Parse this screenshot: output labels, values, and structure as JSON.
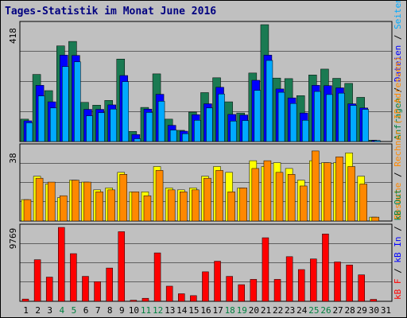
{
  "title": "Tages-Statistik im Monat June 2016",
  "colors": {
    "hits": "#1a7a52",
    "files": "#0000ff",
    "pages": "#00aaff",
    "visits": "#ffff00",
    "sites": "#ff8800",
    "kbytes": "#ff0000",
    "weekend": "#008040",
    "weekday": "#000000"
  },
  "chart_data": [
    {
      "type": "bar",
      "panel": "top",
      "ymax_label": "418",
      "right_labels": [
        {
          "text": "Anfragen",
          "color": "#008040"
        },
        {
          "text": " / ",
          "color": "#000000"
        },
        {
          "text": "Dateien",
          "color": "#0000ff"
        },
        {
          "text": " / ",
          "color": "#000000"
        },
        {
          "text": "Seiten",
          "color": "#00aaff"
        }
      ],
      "ylim": [
        0,
        418
      ],
      "categories": [
        "1",
        "2",
        "3",
        "4",
        "5",
        "6",
        "7",
        "8",
        "9",
        "10",
        "11",
        "12",
        "13",
        "14",
        "15",
        "16",
        "17",
        "18",
        "19",
        "20",
        "21",
        "22",
        "23",
        "24",
        "25",
        "26",
        "27",
        "28",
        "29",
        "30",
        "31"
      ],
      "series": [
        {
          "name": "Anfragen",
          "values": [
            80,
            240,
            182,
            342,
            358,
            140,
            130,
            147,
            295,
            36,
            122,
            242,
            80,
            40,
            105,
            175,
            228,
            142,
            102,
            245,
            418,
            227,
            225,
            164,
            238,
            259,
            226,
            208,
            158,
            5,
            0
          ]
        },
        {
          "name": "Dateien",
          "values": [
            74,
            201,
            142,
            309,
            308,
            115,
            115,
            131,
            236,
            25,
            116,
            169,
            58,
            37,
            96,
            135,
            194,
            97,
            95,
            219,
            309,
            188,
            156,
            102,
            201,
            200,
            192,
            135,
            120,
            4,
            0
          ]
        },
        {
          "name": "Seiten",
          "values": [
            67,
            163,
            120,
            268,
            285,
            92,
            103,
            116,
            214,
            10,
            104,
            144,
            41,
            28,
            76,
            120,
            170,
            73,
            75,
            183,
            290,
            176,
            136,
            76,
            179,
            168,
            173,
            129,
            115,
            3,
            0
          ]
        }
      ]
    },
    {
      "type": "bar",
      "panel": "middle",
      "ymax_label": "38",
      "right_labels": [
        {
          "text": "Besuche",
          "color": "#ff8800"
        },
        {
          "text": " / ",
          "color": "#000000"
        },
        {
          "text": "Rechner (IP-Adressen)",
          "color": "#ff8800"
        }
      ],
      "ylim": [
        0,
        38
      ],
      "categories": [
        "1",
        "2",
        "3",
        "4",
        "5",
        "6",
        "7",
        "8",
        "9",
        "10",
        "11",
        "12",
        "13",
        "14",
        "15",
        "16",
        "17",
        "18",
        "19",
        "20",
        "21",
        "22",
        "23",
        "24",
        "25",
        "26",
        "27",
        "28",
        "29",
        "30",
        "31"
      ],
      "series": [
        {
          "name": "Besuche",
          "values": [
            11,
            23,
            19,
            12,
            21,
            20,
            16,
            17,
            25,
            15,
            15,
            28,
            17,
            16,
            17,
            23,
            28,
            25,
            17,
            31,
            28,
            30,
            27,
            21,
            31,
            30,
            30,
            35,
            23,
            2,
            0
          ]
        },
        {
          "name": "Rechner (IP-Adressen)",
          "values": [
            11,
            22,
            20,
            13,
            21,
            20,
            15,
            16,
            24,
            15,
            13,
            26,
            16,
            15,
            16,
            22,
            26,
            15,
            17,
            27,
            31,
            25,
            24,
            18,
            36,
            30,
            33,
            28,
            19,
            2,
            0
          ]
        }
      ]
    },
    {
      "type": "bar",
      "panel": "bottom",
      "ymax_label": "9769",
      "right_labels": [
        {
          "text": "kB F",
          "color": "#ff0000"
        },
        {
          "text": " / ",
          "color": "#000000"
        },
        {
          "text": "kB In",
          "color": "#0000ff"
        },
        {
          "text": " / ",
          "color": "#000000"
        },
        {
          "text": "kB Out",
          "color": "#008040"
        }
      ],
      "ylim": [
        0,
        9769
      ],
      "categories": [
        "1",
        "2",
        "3",
        "4",
        "5",
        "6",
        "7",
        "8",
        "9",
        "10",
        "11",
        "12",
        "13",
        "14",
        "15",
        "16",
        "17",
        "18",
        "19",
        "20",
        "21",
        "22",
        "23",
        "24",
        "25",
        "26",
        "27",
        "28",
        "29",
        "30",
        "31"
      ],
      "series": [
        {
          "name": "kB F",
          "values": [
            300,
            5500,
            3200,
            9769,
            6300,
            3300,
            2600,
            4400,
            9200,
            150,
            400,
            6400,
            2000,
            1000,
            750,
            3900,
            5300,
            3300,
            2200,
            2900,
            8400,
            2900,
            5900,
            4200,
            5600,
            8900,
            5200,
            4800,
            3500,
            260,
            0
          ]
        }
      ]
    }
  ],
  "x_axis": {
    "labels": [
      "1",
      "2",
      "3",
      "4",
      "5",
      "6",
      "7",
      "8",
      "9",
      "10",
      "11",
      "12",
      "13",
      "14",
      "15",
      "16",
      "17",
      "18",
      "19",
      "20",
      "21",
      "22",
      "23",
      "24",
      "25",
      "26",
      "27",
      "28",
      "29",
      "30",
      "31"
    ],
    "weekend_days": [
      4,
      5,
      11,
      12,
      18,
      19,
      25,
      26
    ]
  }
}
